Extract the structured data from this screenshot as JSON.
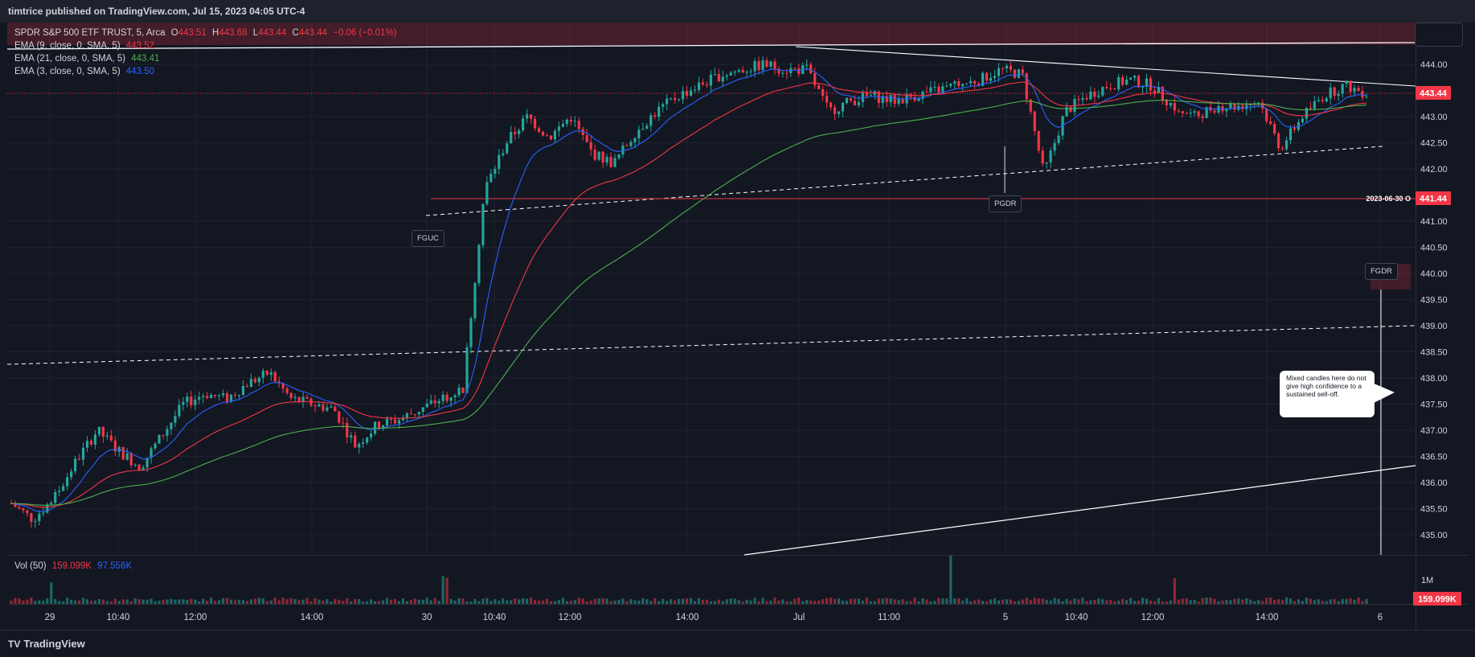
{
  "header": {
    "publisher_line": "timtrice published on TradingView.com, Jul 15, 2023 04:05 UTC-4"
  },
  "legend": {
    "symbol": "SPDR S&P 500 ETF TRUST, 5, Arca",
    "ohlc": {
      "o_label": "O",
      "o": "443.51",
      "h_label": "H",
      "h": "443.68",
      "l_label": "L",
      "l": "443.44",
      "c_label": "C",
      "c": "443.44",
      "change": "−0.06 (−0.01%)"
    },
    "ema9": {
      "label": "EMA (9, close, 0, SMA, 5)",
      "value": "443.52",
      "color": "#f23645"
    },
    "ema21": {
      "label": "EMA (21, close, 0, SMA, 5)",
      "value": "443.41",
      "color": "#4caf50"
    },
    "ema3": {
      "label": "EMA (3, close, 0, SMA, 5)",
      "value": "443.50",
      "color": "#2962ff"
    },
    "volume": {
      "label": "Vol (50)",
      "value1": "159.099K",
      "value2": "97.556K"
    }
  },
  "price_axis": {
    "ticks": [
      "444.00",
      "443.00",
      "442.50",
      "442.00",
      "441.00",
      "440.50",
      "440.00",
      "439.50",
      "439.00",
      "438.50",
      "438.00",
      "437.50",
      "437.00",
      "436.50",
      "436.00",
      "435.50",
      "435.00"
    ],
    "last_price_label": "443.44",
    "level_label": "441.44",
    "level_tag": "2023-06-30 O",
    "volume_tick": "1M",
    "volume_label": "159.099K"
  },
  "time_axis": {
    "labels": [
      "29",
      "10:40",
      "12:00",
      "14:00",
      "30",
      "10:40",
      "12:00",
      "14:00",
      "Jul",
      "11:00",
      "5",
      "10:40",
      "12:00",
      "14:00",
      "6"
    ]
  },
  "annotations": {
    "fguc": "FGUC",
    "pgdr": "PGDR",
    "fgdr": "FGDR",
    "note": "Mixed candles here do not give high confidence to a sustained sell-off."
  },
  "footer": {
    "brand": "TradingView"
  },
  "colors": {
    "up": "#26a69a",
    "down": "#f23645",
    "bg": "#131722",
    "grid": "#1f2330",
    "text": "#d1d4dc"
  },
  "chart_data": {
    "type": "candlestick",
    "title": "SPDR S&P 500 ETF TRUST, 5, Arca",
    "ylim": [
      434.8,
      444.6
    ],
    "key_levels": [
      {
        "value": 443.44,
        "label": "443.44"
      },
      {
        "value": 441.44,
        "label": "2023-06-30 O"
      }
    ],
    "close_path": [
      [
        0,
        435.6
      ],
      [
        1,
        435.3
      ],
      [
        2,
        435.7
      ],
      [
        3,
        436.4
      ],
      [
        4,
        437.0
      ],
      [
        5,
        436.6
      ],
      [
        6,
        436.3
      ],
      [
        7,
        436.9
      ],
      [
        8,
        437.5
      ],
      [
        9,
        437.7
      ],
      [
        10,
        437.6
      ],
      [
        11,
        437.9
      ],
      [
        12,
        438.1
      ],
      [
        13,
        437.6
      ],
      [
        14,
        437.5
      ],
      [
        15,
        437.4
      ],
      [
        16,
        436.7
      ],
      [
        17,
        437.1
      ],
      [
        18,
        437.2
      ],
      [
        19,
        437.4
      ],
      [
        20,
        437.6
      ],
      [
        21,
        437.8
      ],
      [
        22,
        441.6
      ],
      [
        23,
        442.5
      ],
      [
        24,
        443.0
      ],
      [
        25,
        442.6
      ],
      [
        26,
        443.0
      ],
      [
        27,
        442.3
      ],
      [
        28,
        442.1
      ],
      [
        29,
        442.7
      ],
      [
        30,
        443.1
      ],
      [
        31,
        443.4
      ],
      [
        32,
        443.6
      ],
      [
        33,
        443.8
      ],
      [
        34,
        443.9
      ],
      [
        35,
        444.0
      ],
      [
        36,
        443.9
      ],
      [
        37,
        443.9
      ],
      [
        38,
        443.1
      ],
      [
        39,
        443.3
      ],
      [
        40,
        443.4
      ],
      [
        41,
        443.3
      ],
      [
        42,
        443.4
      ],
      [
        43,
        443.5
      ],
      [
        44,
        443.6
      ],
      [
        45,
        443.7
      ],
      [
        46,
        443.9
      ],
      [
        47,
        443.8
      ],
      [
        48,
        441.9
      ],
      [
        49,
        443.1
      ],
      [
        50,
        443.4
      ],
      [
        51,
        443.6
      ],
      [
        52,
        443.7
      ],
      [
        53,
        443.6
      ],
      [
        54,
        443.2
      ],
      [
        55,
        443.0
      ],
      [
        56,
        443.2
      ],
      [
        57,
        443.2
      ],
      [
        58,
        443.3
      ],
      [
        59,
        442.4
      ],
      [
        60,
        443.0
      ],
      [
        61,
        443.4
      ],
      [
        62,
        443.6
      ],
      [
        63,
        443.44
      ]
    ]
  }
}
